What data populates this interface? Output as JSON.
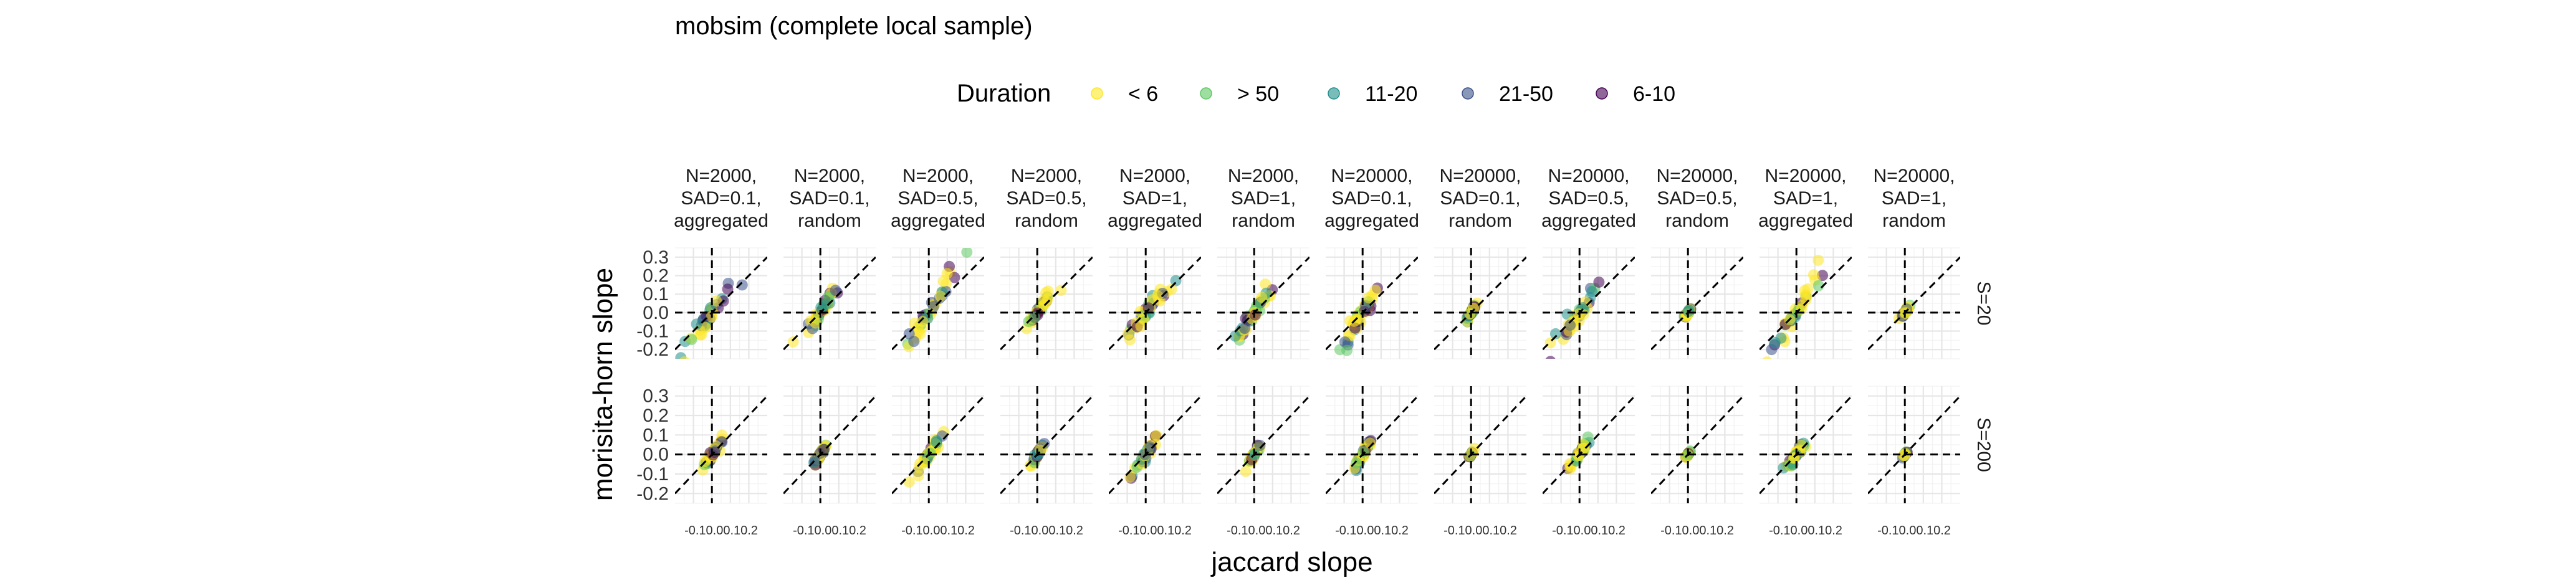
{
  "chart_data": {
    "type": "scatter",
    "title": "mobsim (complete local sample)",
    "xlabel": "jaccard slope",
    "ylabel": "morisita-horn slope",
    "xlim": [
      -0.2,
      0.3
    ],
    "ylim": [
      -0.25,
      0.35
    ],
    "x_ticks": [
      "-0.1",
      "0.0",
      "0.1",
      "0.2"
    ],
    "x_tick_values": [
      -0.1,
      0.0,
      0.1,
      0.2
    ],
    "y_ticks": [
      "-0.2",
      "-0.1",
      "0.0",
      "0.1",
      "0.2",
      "0.3"
    ],
    "y_tick_values": [
      -0.2,
      -0.1,
      0.0,
      0.1,
      0.2,
      0.3
    ],
    "legend": {
      "title": "Duration",
      "placement": "top",
      "entries": [
        {
          "label": "< 6",
          "color": "#FDE725"
        },
        {
          "label": "> 50",
          "color": "#5DC863"
        },
        {
          "label": "11-20",
          "color": "#21908C"
        },
        {
          "label": "21-50",
          "color": "#3B528B"
        },
        {
          "label": "6-10",
          "color": "#440154"
        }
      ]
    },
    "reference_lines": [
      "x=0 dashed",
      "y=0 dashed",
      "y=x dashed"
    ],
    "columns": [
      {
        "label": "N=2000,\nSAD=0.1,\naggregated",
        "spread": 0.09
      },
      {
        "label": "N=2000,\nSAD=0.1,\nrandom",
        "spread": 0.05
      },
      {
        "label": "N=2000,\nSAD=0.5,\naggregated",
        "spread": 0.08
      },
      {
        "label": "N=2000,\nSAD=0.5,\nrandom",
        "spread": 0.05
      },
      {
        "label": "N=2000,\nSAD=1,\naggregated",
        "spread": 0.09
      },
      {
        "label": "N=2000,\nSAD=1,\nrandom",
        "spread": 0.05
      },
      {
        "label": "N=20000,\nSAD=0.1,\naggregated",
        "spread": 0.07
      },
      {
        "label": "N=20000,\nSAD=0.1,\nrandom",
        "spread": 0.015
      },
      {
        "label": "N=20000,\nSAD=0.5,\naggregated",
        "spread": 0.08
      },
      {
        "label": "N=20000,\nSAD=0.5,\nrandom",
        "spread": 0.012
      },
      {
        "label": "N=20000,\nSAD=1,\naggregated",
        "spread": 0.07
      },
      {
        "label": "N=20000,\nSAD=1,\nrandom",
        "spread": 0.012
      }
    ],
    "rows": [
      {
        "label": "S=20",
        "scale": 1.0
      },
      {
        "label": "S=200",
        "scale": 0.45
      }
    ]
  }
}
